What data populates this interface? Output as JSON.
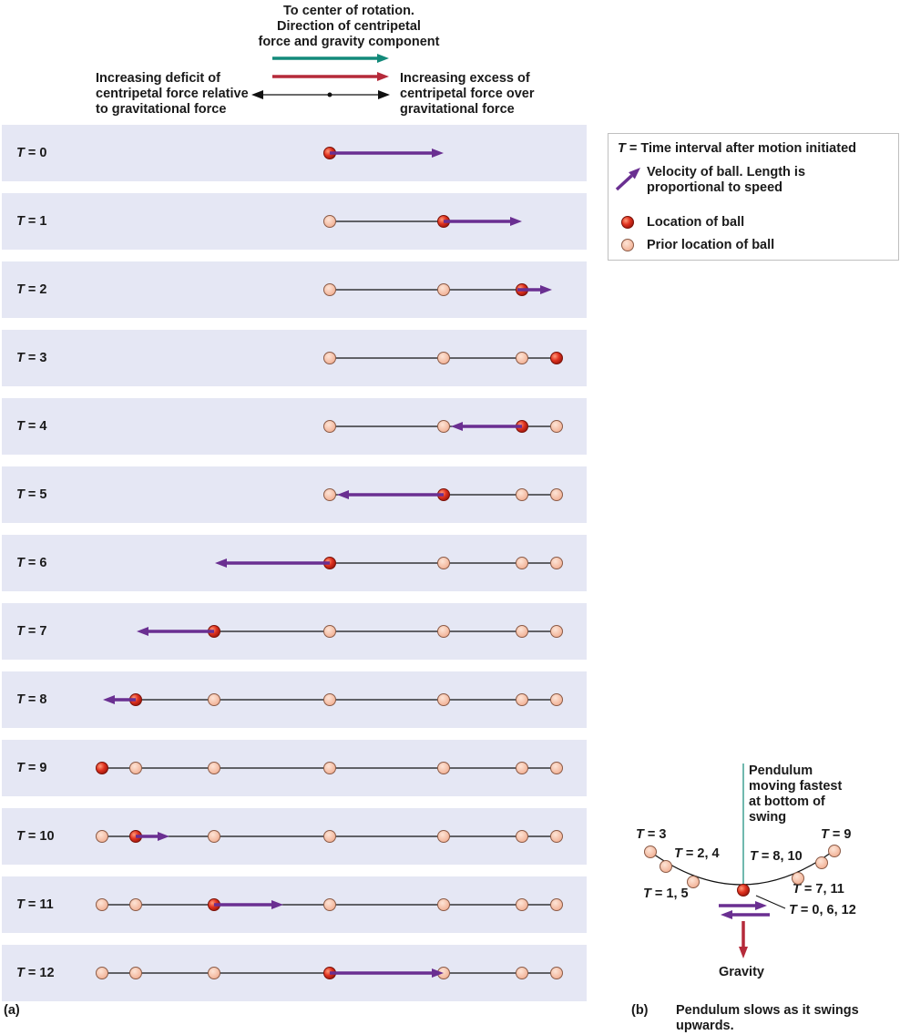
{
  "header": {
    "center_title": [
      "To center of rotation.",
      "Direction of centripetal",
      "force and gravity component"
    ],
    "left_text": [
      "Increasing deficit of",
      "centripetal force relative",
      "to gravitational force"
    ],
    "right_text": [
      "Increasing excess of",
      "centripetal force over",
      "gravitational force"
    ]
  },
  "legend": {
    "time_prefix": "T",
    "time_text": " = Time interval after motion initiated",
    "velocity_text": [
      "Velocity of ball. Length is",
      "proportional to speed"
    ],
    "location_text": "Location of ball",
    "prior_text": "Prior location of ball"
  },
  "rows": [
    {
      "t_prefix": "T",
      "t_label": " = 0"
    },
    {
      "t_prefix": "T",
      "t_label": " = 1"
    },
    {
      "t_prefix": "T",
      "t_label": " = 2"
    },
    {
      "t_prefix": "T",
      "t_label": " = 3"
    },
    {
      "t_prefix": "T",
      "t_label": " = 4"
    },
    {
      "t_prefix": "T",
      "t_label": " = 5"
    },
    {
      "t_prefix": "T",
      "t_label": " = 6"
    },
    {
      "t_prefix": "T",
      "t_label": " = 7"
    },
    {
      "t_prefix": "T",
      "t_label": " = 8"
    },
    {
      "t_prefix": "T",
      "t_label": " = 9"
    },
    {
      "t_prefix": "T",
      "t_label": " = 10"
    },
    {
      "t_prefix": "T",
      "t_label": " = 11"
    },
    {
      "t_prefix": "T",
      "t_label": " = 12"
    }
  ],
  "panel_a_label": "(a)",
  "panel_b": {
    "label": "(b)",
    "caption": [
      "Pendulum slows as it swings",
      "upwards."
    ],
    "fastest": [
      "Pendulum",
      "moving fastest",
      "at bottom of",
      "swing"
    ],
    "t3": " = 3",
    "t24": " = 2, 4",
    "t15": " = 1, 5",
    "t9": " = 9",
    "t810": " = 8, 10",
    "t711": " = 7, 11",
    "t0612": " = 0, 6, 12",
    "t_prefix": "T",
    "gravity": "Gravity"
  },
  "colors": {
    "row_bg": "#e5e7f4",
    "teal": "#138a7a",
    "red_arrow": "#b52a3a",
    "purple": "#6a2f91",
    "ball": "#e0321f",
    "prior": "#f6c3ab"
  }
}
